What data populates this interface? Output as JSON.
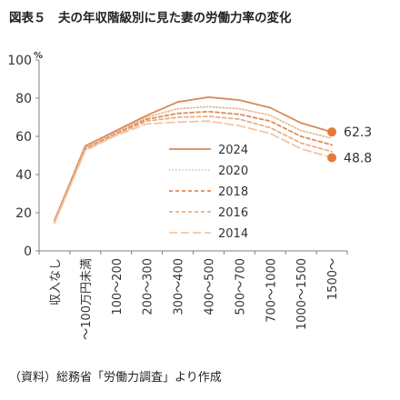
{
  "header": {
    "title": "図表５　夫の年収階級別に見た妻の労働力率の変化"
  },
  "footer": {
    "source": "（資料）総務省「労働力調査」より作成"
  },
  "chart_data": {
    "type": "line",
    "title": "図表５　夫の年収階級別に見た妻の労働力率の変化",
    "ylabel": "%",
    "ylim": [
      0,
      100
    ],
    "yticks": [
      0,
      20,
      40,
      60,
      80,
      100
    ],
    "categories": [
      "収入なし",
      "～100万円未満",
      "100～200",
      "200～300",
      "300～400",
      "400～500",
      "500～700",
      "700～1000",
      "1000～1500",
      "1500～"
    ],
    "series": [
      {
        "name": "2024",
        "style": "solid",
        "color": "#d9895a",
        "values": [
          16,
          55,
          63,
          71,
          78,
          80.5,
          79,
          75,
          67,
          62.3
        ]
      },
      {
        "name": "2020",
        "style": "dotted",
        "color": "#e7b995",
        "values": [
          15.5,
          54,
          62,
          70,
          74.5,
          75.5,
          74.5,
          71,
          63,
          59
        ]
      },
      {
        "name": "2018",
        "style": "dashed",
        "color": "#dc8c5c",
        "values": [
          15.5,
          53.5,
          61.5,
          69,
          72,
          73,
          71.5,
          68,
          60,
          55.5
        ]
      },
      {
        "name": "2016",
        "style": "dashed",
        "color": "#eab088",
        "values": [
          15,
          53,
          61,
          68,
          70,
          70.5,
          69,
          64.5,
          56.5,
          52
        ]
      },
      {
        "name": "2014",
        "style": "longdash",
        "color": "#f0c7a5",
        "values": [
          14.5,
          52.5,
          60.5,
          66.5,
          67.5,
          68,
          65.5,
          61.5,
          53.5,
          48.8
        ]
      }
    ],
    "end_labels": [
      {
        "series": "2024",
        "label": "62.3"
      },
      {
        "series": "2014",
        "label": "48.8"
      }
    ],
    "marker_color": "#e5793a",
    "legend_position": "center-right",
    "grid": false
  }
}
